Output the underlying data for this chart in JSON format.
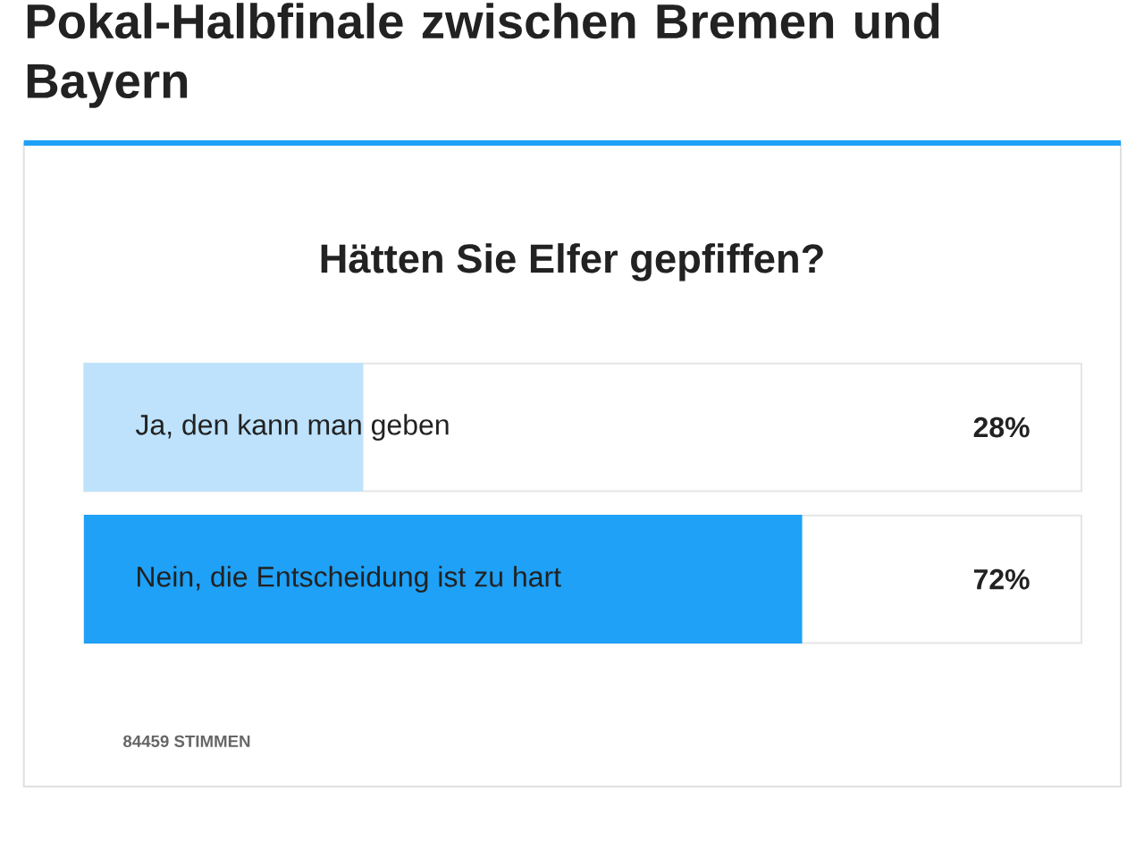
{
  "chart_data": {
    "type": "bar",
    "orientation": "horizontal",
    "title": "Pokal-Halbfinale zwischen Bremen und Bayern",
    "subtitle": "Hätten Sie Elfer gepfiffen?",
    "categories": [
      "Ja, den kann man geben",
      "Nein, die Entscheidung ist zu hart"
    ],
    "values": [
      28,
      72
    ],
    "colors": [
      "#bee2fc",
      "#1ea1f7"
    ],
    "value_labels": [
      "28%",
      "72%"
    ],
    "xlim": [
      0,
      100
    ],
    "annotations": [
      "84459 STIMMEN"
    ]
  }
}
